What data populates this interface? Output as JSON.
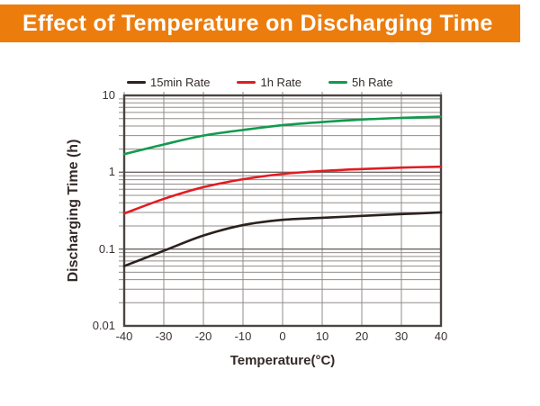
{
  "banner": {
    "title": "Effect of Temperature on Discharging Time",
    "bg_color": "#EC7D0D",
    "text_color": "#FFFFFF"
  },
  "chart_data": {
    "type": "line",
    "title": "Effect of Temperature on Discharging Time",
    "xlabel": "Temperature(°C)",
    "ylabel": "Discharging Time (h)",
    "x": [
      -40,
      -30,
      -20,
      -10,
      0,
      10,
      20,
      30,
      40
    ],
    "x_tick_labels": [
      "-40",
      "-30",
      "-20",
      "-10",
      "0",
      "10",
      "20",
      "30",
      "40"
    ],
    "xlim": [
      -40,
      40
    ],
    "y_scale": "log",
    "ylim": [
      0.01,
      10
    ],
    "y_ticks": [
      10,
      1,
      0.1,
      0.01
    ],
    "y_tick_labels": [
      "10",
      "1",
      "0.1",
      "0.01"
    ],
    "grid": true,
    "legend_position": "top",
    "series": [
      {
        "name": "15min Rate",
        "color": "#2B211E",
        "values": [
          0.06,
          0.095,
          0.15,
          0.205,
          0.24,
          0.255,
          0.27,
          0.285,
          0.3
        ]
      },
      {
        "name": "1h Rate",
        "color": "#E21C22",
        "values": [
          0.29,
          0.45,
          0.64,
          0.81,
          0.95,
          1.04,
          1.1,
          1.15,
          1.18
        ]
      },
      {
        "name": "5h Rate",
        "color": "#119A4E",
        "values": [
          1.72,
          2.3,
          3.0,
          3.55,
          4.1,
          4.5,
          4.85,
          5.1,
          5.3
        ]
      }
    ],
    "grid_color": "#918C8A",
    "grid_major_color": "#6E6765",
    "border_color": "#4A4442",
    "tick_text_color": "#3A3231"
  }
}
